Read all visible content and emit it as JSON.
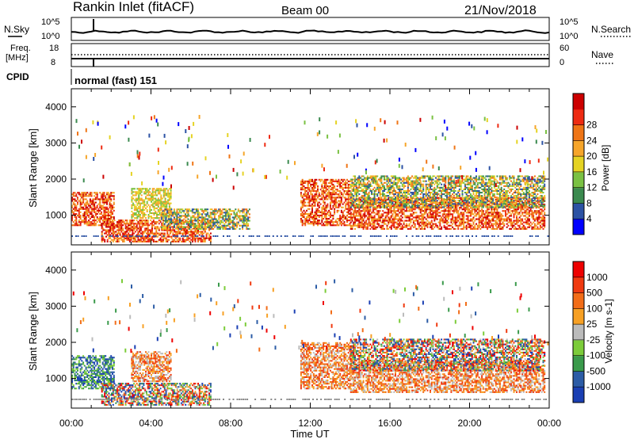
{
  "header": {
    "station": "Rankin Inlet (fitACF)",
    "beam": "Beam 00",
    "date": "21/Nov/2018"
  },
  "side_labels": {
    "nsky": "N.Sky",
    "nsky_top": "10^5",
    "nsky_bottom": "10^0",
    "nsearch": "N.Search",
    "nsearch_top": "10^5",
    "nsearch_bottom": "10^0",
    "freq_line1": "Freq.",
    "freq_line2": "[MHz]",
    "freq_top": "18",
    "freq_bottom": "8",
    "nave": "Nave",
    "nave_top": "60",
    "nave_bottom": "0",
    "cpid": "CPID",
    "cpid_value": "normal (fast) 151"
  },
  "colors": {
    "power_scale": [
      "#0000ff",
      "#2c52a4",
      "#3b8a4f",
      "#7ac143",
      "#e5d323",
      "#f6a52a",
      "#ef7516",
      "#ee2b12",
      "#cc0000"
    ],
    "velocity_scale": [
      "#ee0000",
      "#f03a10",
      "#f26d18",
      "#f7a024",
      "#bbbbbb",
      "#7ccc3a",
      "#3a9a4b",
      "#2c5ca6",
      "#1a3fb3"
    ]
  },
  "chart_data": [
    {
      "type": "heatmap",
      "title": "",
      "xlabel": "",
      "ylabel": "Slant Range [km]",
      "xlim": [
        "00:00",
        "00:00"
      ],
      "ylim": [
        180,
        4500
      ],
      "x_ticks": [
        "00:00",
        "04:00",
        "08:00",
        "12:00",
        "16:00",
        "20:00",
        "00:00"
      ],
      "y_ticks": [
        "1000",
        "2000",
        "3000",
        "4000"
      ],
      "colorbar": {
        "label": "Power [dB]",
        "ticks": [
          "4",
          "8",
          "12",
          "16",
          "20",
          "24",
          "28"
        ]
      },
      "echo_regions": [
        {
          "t_start_h": 0.0,
          "t_end_h": 2.2,
          "r_min_km": 700,
          "r_max_km": 1650,
          "level": "high"
        },
        {
          "t_start_h": 3.0,
          "t_end_h": 5.0,
          "r_min_km": 900,
          "r_max_km": 1750,
          "level": "mid"
        },
        {
          "t_start_h": 1.5,
          "t_end_h": 7.0,
          "r_min_km": 250,
          "r_max_km": 900,
          "level": "high"
        },
        {
          "t_start_h": 4.5,
          "t_end_h": 9.0,
          "r_min_km": 600,
          "r_max_km": 1200,
          "level": "mixed"
        },
        {
          "t_start_h": 11.5,
          "t_end_h": 14.0,
          "r_min_km": 700,
          "r_max_km": 2000,
          "level": "high"
        },
        {
          "t_start_h": 14.0,
          "t_end_h": 23.8,
          "r_min_km": 600,
          "r_max_km": 1500,
          "level": "high"
        },
        {
          "t_start_h": 14.0,
          "t_end_h": 23.8,
          "r_min_km": 1200,
          "r_max_km": 2100,
          "level": "mixed"
        }
      ]
    },
    {
      "type": "heatmap",
      "title": "",
      "xlabel": "Time UT",
      "ylabel": "Slant Range [km]",
      "xlim": [
        "00:00",
        "00:00"
      ],
      "ylim": [
        180,
        4500
      ],
      "x_ticks": [
        "00:00",
        "04:00",
        "08:00",
        "12:00",
        "16:00",
        "20:00",
        "00:00"
      ],
      "y_ticks": [
        "1000",
        "2000",
        "3000",
        "4000"
      ],
      "colorbar": {
        "label": "Velocity [m s-1]",
        "ticks": [
          "1000",
          "500",
          "100",
          "25",
          "-25",
          "-100",
          "-500",
          "-1000"
        ]
      },
      "echo_regions": [
        {
          "t_start_h": 0.0,
          "t_end_h": 2.2,
          "r_min_km": 700,
          "r_max_km": 1650,
          "level": "toward"
        },
        {
          "t_start_h": 3.0,
          "t_end_h": 5.0,
          "r_min_km": 900,
          "r_max_km": 1750,
          "level": "away"
        },
        {
          "t_start_h": 1.5,
          "t_end_h": 7.0,
          "r_min_km": 250,
          "r_max_km": 900,
          "level": "mixed"
        },
        {
          "t_start_h": 11.5,
          "t_end_h": 14.0,
          "r_min_km": 700,
          "r_max_km": 2000,
          "level": "away"
        },
        {
          "t_start_h": 14.0,
          "t_end_h": 23.8,
          "r_min_km": 600,
          "r_max_km": 1500,
          "level": "away"
        },
        {
          "t_start_h": 14.0,
          "t_end_h": 23.8,
          "r_min_km": 1200,
          "r_max_km": 2100,
          "level": "mixed"
        }
      ]
    }
  ]
}
